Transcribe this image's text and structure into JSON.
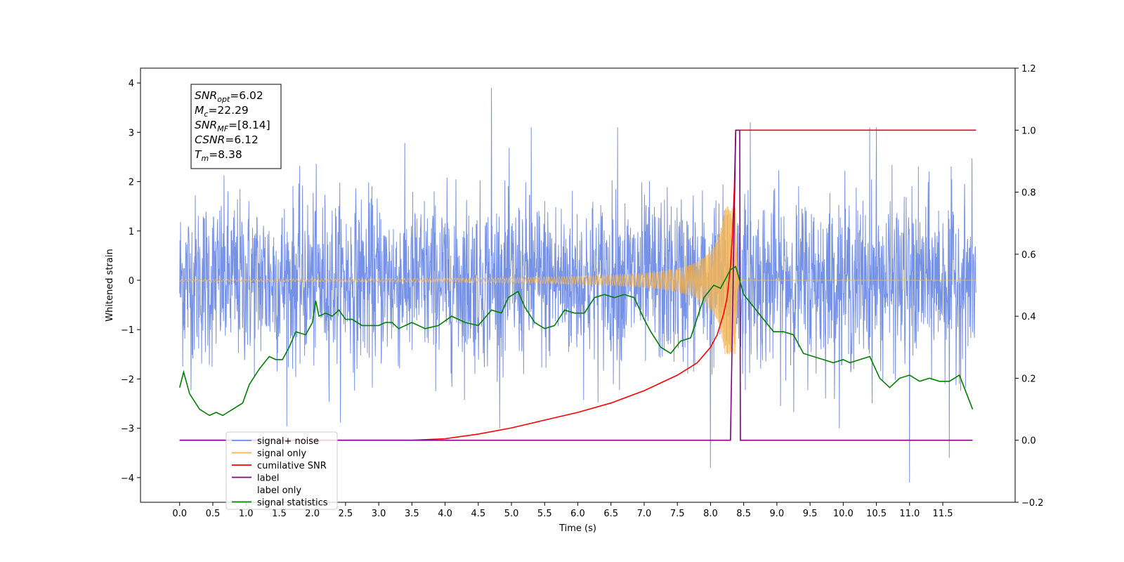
{
  "chart_data": {
    "type": "line",
    "xlabel": "Time (s)",
    "ylabel": "Whitened strain",
    "xlim": [
      -0.59,
      12.59
    ],
    "ylim": [
      -4.5,
      4.3
    ],
    "y2lim": [
      -0.2,
      1.2
    ],
    "xticks": [
      "0.0",
      "0.5",
      "1.0",
      "1.5",
      "2.0",
      "2.5",
      "3.0",
      "3.5",
      "4.0",
      "4.5",
      "5.0",
      "5.5",
      "6.0",
      "6.5",
      "7.0",
      "7.5",
      "8.0",
      "8.5",
      "9.0",
      "9.5",
      "10.0",
      "10.5",
      "11.0",
      "11.5"
    ],
    "yticks": [
      "4",
      "3",
      "2",
      "1",
      "0",
      "−1",
      "−2",
      "−3",
      "−4"
    ],
    "y2ticks": [
      "1.2",
      "1.0",
      "0.8",
      "0.6",
      "0.4",
      "0.2",
      "0.0",
      "−0.2"
    ],
    "grid": false,
    "legend_position": "lower-left",
    "stats_box": [
      {
        "sym": "SNR",
        "sub": "opt",
        "value": "=6.02"
      },
      {
        "sym": "M",
        "sub": "c",
        "value": "=22.29"
      },
      {
        "sym": "SNR",
        "sub": "MF",
        "value": "=[8.14]"
      },
      {
        "sym": "CSNR",
        "sub": "",
        "value": "=6.12"
      },
      {
        "sym": "T",
        "sub": "m",
        "value": "=8.38"
      }
    ],
    "series": [
      {
        "name": "signal+ noise",
        "axis": "left",
        "color": "#6f8ce6",
        "noise_band": {
          "x_range": [
            0,
            12
          ],
          "typical_range": [
            -1.7,
            1.7
          ]
        },
        "spikes": [
          [
            4.7,
            3.9
          ],
          [
            8.6,
            3.2
          ],
          [
            10.4,
            3.1
          ],
          [
            10.5,
            3.1
          ],
          [
            5.3,
            3.1
          ],
          [
            6.6,
            3.1
          ],
          [
            8.0,
            -3.8
          ],
          [
            11.0,
            -4.1
          ],
          [
            11.6,
            -3.6
          ]
        ]
      },
      {
        "name": "signal only",
        "axis": "left",
        "color": "#f5b555",
        "description_points": {
          "t_merge": 8.38,
          "envelope_start": 0.02,
          "envelope_peak": 1.5
        }
      },
      {
        "name": "cumilative SNR",
        "axis": "right",
        "color": "#ff0000",
        "x": [
          0.0,
          3.5,
          4.0,
          4.5,
          5.0,
          5.5,
          6.0,
          6.5,
          7.0,
          7.5,
          7.8,
          8.0,
          8.1,
          8.2,
          8.25,
          8.3,
          8.33,
          8.36,
          8.38,
          12.0
        ],
        "y": [
          0.0,
          0.0,
          0.005,
          0.02,
          0.04,
          0.065,
          0.09,
          0.12,
          0.16,
          0.21,
          0.25,
          0.3,
          0.34,
          0.41,
          0.46,
          0.56,
          0.66,
          0.82,
          1.0,
          1.0
        ]
      },
      {
        "name": "label",
        "axis": "right",
        "color": "#800080",
        "x": [
          0.0,
          8.3,
          8.38,
          8.44,
          8.45,
          11.95
        ],
        "y": [
          0.0,
          0.0,
          1.0,
          1.0,
          0.0,
          0.0
        ]
      },
      {
        "name": "label only",
        "axis": "right",
        "color": "#ffffff",
        "hidden": true
      },
      {
        "name": "signal statistics",
        "axis": "right",
        "color": "#008000",
        "x": [
          0.0,
          0.06,
          0.15,
          0.3,
          0.45,
          0.55,
          0.65,
          0.8,
          0.95,
          1.05,
          1.2,
          1.35,
          1.45,
          1.55,
          1.65,
          1.75,
          1.9,
          2.0,
          2.05,
          2.1,
          2.2,
          2.3,
          2.4,
          2.5,
          2.6,
          2.75,
          2.9,
          3.0,
          3.1,
          3.2,
          3.3,
          3.5,
          3.7,
          3.9,
          4.1,
          4.3,
          4.5,
          4.7,
          4.85,
          4.95,
          5.1,
          5.2,
          5.35,
          5.5,
          5.65,
          5.8,
          5.95,
          6.1,
          6.25,
          6.4,
          6.55,
          6.7,
          6.85,
          7.0,
          7.1,
          7.25,
          7.4,
          7.55,
          7.7,
          7.9,
          8.05,
          8.15,
          8.3,
          8.38,
          8.5,
          8.65,
          8.8,
          8.95,
          9.1,
          9.25,
          9.4,
          9.55,
          9.7,
          9.85,
          10.0,
          10.1,
          10.25,
          10.4,
          10.55,
          10.7,
          10.85,
          11.0,
          11.15,
          11.3,
          11.45,
          11.6,
          11.75,
          11.95
        ],
        "y": [
          0.17,
          0.22,
          0.15,
          0.1,
          0.08,
          0.09,
          0.08,
          0.1,
          0.12,
          0.18,
          0.23,
          0.27,
          0.26,
          0.26,
          0.3,
          0.35,
          0.34,
          0.38,
          0.45,
          0.4,
          0.41,
          0.4,
          0.42,
          0.39,
          0.39,
          0.37,
          0.37,
          0.37,
          0.38,
          0.38,
          0.36,
          0.38,
          0.36,
          0.37,
          0.4,
          0.38,
          0.37,
          0.42,
          0.41,
          0.46,
          0.48,
          0.43,
          0.38,
          0.36,
          0.37,
          0.42,
          0.41,
          0.41,
          0.46,
          0.47,
          0.46,
          0.47,
          0.46,
          0.39,
          0.35,
          0.3,
          0.28,
          0.32,
          0.33,
          0.46,
          0.5,
          0.49,
          0.55,
          0.56,
          0.47,
          0.43,
          0.39,
          0.35,
          0.35,
          0.34,
          0.28,
          0.27,
          0.26,
          0.25,
          0.26,
          0.25,
          0.26,
          0.27,
          0.2,
          0.17,
          0.2,
          0.21,
          0.19,
          0.2,
          0.19,
          0.19,
          0.21,
          0.1
        ]
      }
    ]
  }
}
